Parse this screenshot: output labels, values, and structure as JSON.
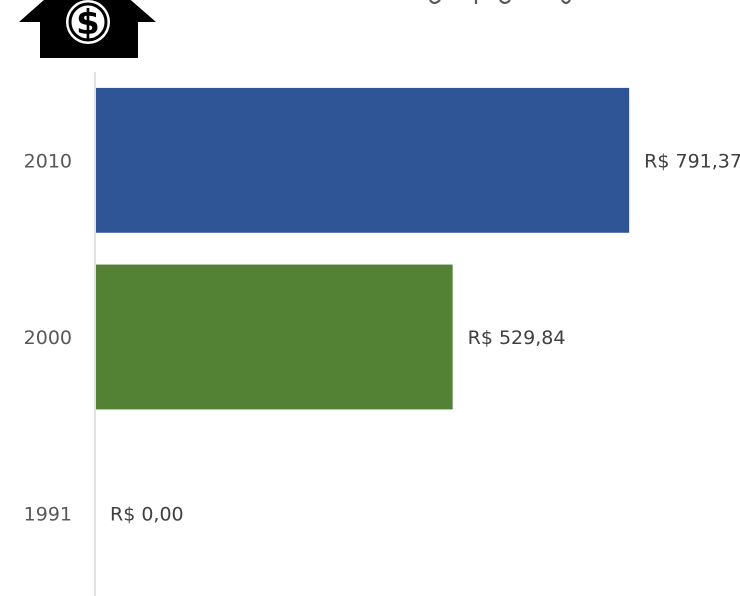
{
  "chart_data": {
    "type": "bar",
    "orientation": "horizontal",
    "title": "",
    "xlabel": "",
    "ylabel": "",
    "categories": [
      "2010",
      "2000",
      "1991"
    ],
    "values": [
      791.37,
      529.84,
      0.0
    ],
    "data_labels": [
      "R$ 791,37",
      "R$ 529,84",
      "R$ 0,00"
    ],
    "bar_colors": [
      "#2f5596",
      "#548235",
      "#a5a5a5"
    ],
    "xlim": [
      0,
      800
    ],
    "grid": false,
    "legend": "none"
  },
  "header": {
    "icon": "house-dollar-icon",
    "icon_color": "#000000"
  }
}
